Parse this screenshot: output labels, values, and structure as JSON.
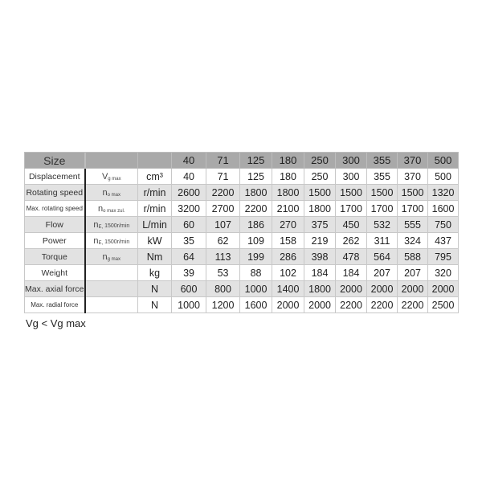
{
  "header": {
    "label": "Size",
    "sizes": [
      "40",
      "71",
      "125",
      "180",
      "250",
      "300",
      "355",
      "370",
      "500"
    ]
  },
  "rows": [
    {
      "label": "Displacement",
      "sym": "V",
      "sub": "g max",
      "rest": "",
      "unit": "cm³",
      "values": [
        "40",
        "71",
        "125",
        "180",
        "250",
        "300",
        "355",
        "370",
        "500"
      ]
    },
    {
      "label": "Rotating speed",
      "sym": "n",
      "sub": "o max",
      "rest": "",
      "unit": "r/min",
      "values": [
        "2600",
        "2200",
        "1800",
        "1800",
        "1500",
        "1500",
        "1500",
        "1500",
        "1320"
      ]
    },
    {
      "label": "Max. rotating speed",
      "sym": "n",
      "sub": "o max zul.",
      "rest": "",
      "unit": "r/min",
      "values": [
        "3200",
        "2700",
        "2200",
        "2100",
        "1800",
        "1700",
        "1700",
        "1700",
        "1600"
      ]
    },
    {
      "label": "Flow",
      "sym": "n",
      "sub": "E,",
      "rest": " 1500r/min",
      "unit": "L/min",
      "values": [
        "60",
        "107",
        "186",
        "270",
        "375",
        "450",
        "532",
        "555",
        "750"
      ]
    },
    {
      "label": "Power",
      "sym": "n",
      "sub": "E,",
      "rest": " 1500r/min",
      "unit": "kW",
      "values": [
        "35",
        "62",
        "109",
        "158",
        "219",
        "262",
        "311",
        "324",
        "437"
      ]
    },
    {
      "label": "Torque",
      "sym": "n",
      "sub": "g max",
      "rest": "",
      "unit": "Nm",
      "values": [
        "64",
        "113",
        "199",
        "286",
        "398",
        "478",
        "564",
        "588",
        "795"
      ]
    },
    {
      "label": "Weight",
      "sym": "",
      "sub": "",
      "rest": "",
      "unit": "kg",
      "values": [
        "39",
        "53",
        "88",
        "102",
        "184",
        "184",
        "207",
        "207",
        "320"
      ]
    },
    {
      "label": "Max. axial force",
      "sym": "",
      "sub": "",
      "rest": "",
      "unit": "N",
      "values": [
        "600",
        "800",
        "1000",
        "1400",
        "1800",
        "2000",
        "2000",
        "2000",
        "2000"
      ]
    },
    {
      "label": "Max. radial force",
      "sym": "",
      "sub": "",
      "rest": "",
      "unit": "N",
      "values": [
        "1000",
        "1200",
        "1600",
        "2000",
        "2000",
        "2200",
        "2200",
        "2200",
        "2500"
      ]
    }
  ],
  "note": "Vg < Vg max"
}
